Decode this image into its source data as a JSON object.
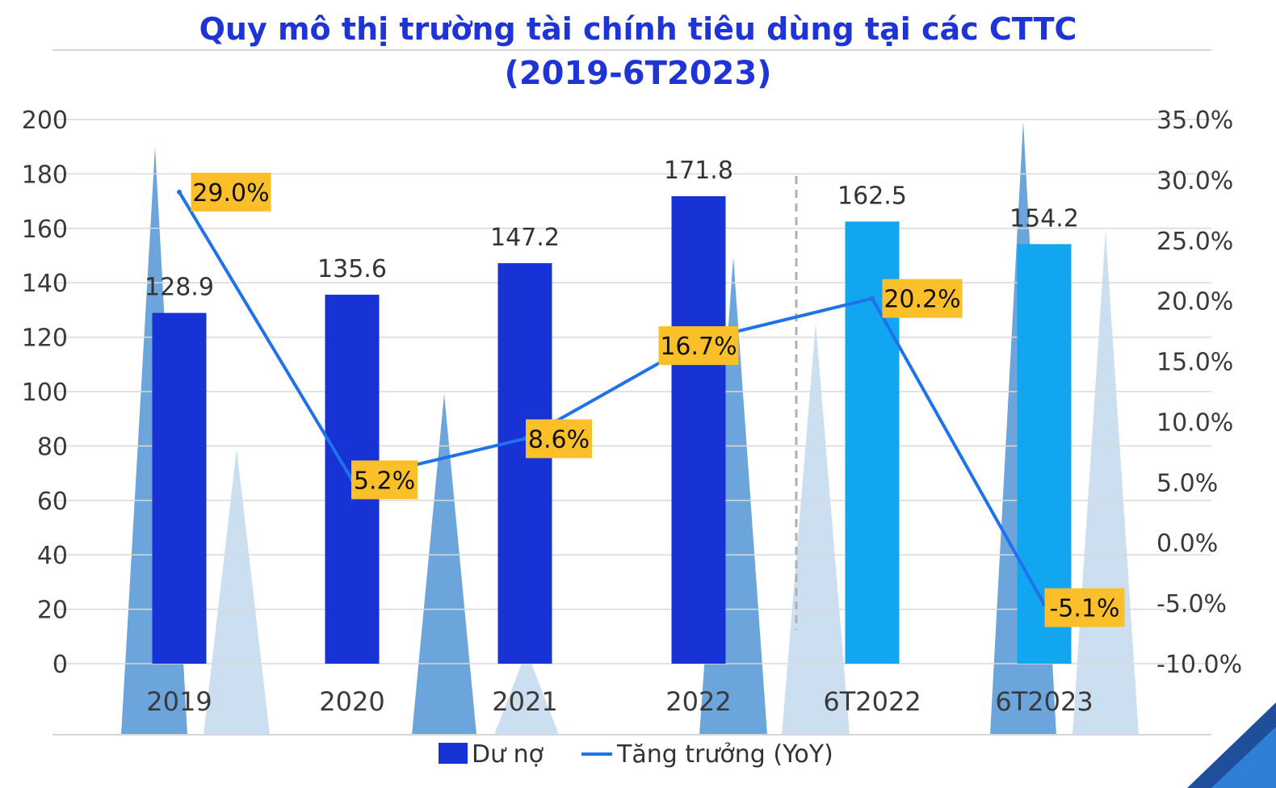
{
  "chart_data": {
    "type": "bar",
    "title": "Quy mô thị trường tài chính tiêu dùng tại các CTTC",
    "subtitle": "(2019-6T2023)",
    "categories": [
      "2019",
      "2020",
      "2021",
      "2022",
      "6T2022",
      "6T2023"
    ],
    "series": [
      {
        "name": "Dư nợ",
        "type": "bar",
        "axis": "left",
        "values": [
          128.9,
          135.6,
          147.2,
          171.8,
          162.5,
          154.2
        ],
        "value_labels": [
          "128.9",
          "135.6",
          "147.2",
          "171.8",
          "162.5",
          "154.2"
        ],
        "colors": [
          "#1733d6",
          "#1733d6",
          "#1733d6",
          "#1733d6",
          "#12a6f1",
          "#12a6f1"
        ]
      },
      {
        "name": "Tăng trưởng (YoY)",
        "type": "line",
        "axis": "right",
        "values": [
          29.0,
          5.2,
          8.6,
          16.7,
          20.2,
          -5.1
        ],
        "value_labels": [
          "29.0%",
          "5.2%",
          "8.6%",
          "16.7%",
          "20.2%",
          "-5.1%"
        ],
        "color": "#1f72ea",
        "label_background": "#fbbf2a"
      }
    ],
    "y_left": {
      "range": [
        0,
        200
      ],
      "ticks": [
        "0",
        "20",
        "40",
        "60",
        "80",
        "100",
        "120",
        "140",
        "160",
        "180",
        "200"
      ]
    },
    "y_right": {
      "range": [
        -10,
        35
      ],
      "ticks": [
        "-10.0%",
        "-5.0%",
        "0.0%",
        "5.0%",
        "10.0%",
        "15.0%",
        "20.0%",
        "25.0%",
        "30.0%",
        "35.0%"
      ]
    },
    "grid": true,
    "legend": "bottom-center",
    "divider_between": [
      "2022",
      "6T2022"
    ]
  }
}
